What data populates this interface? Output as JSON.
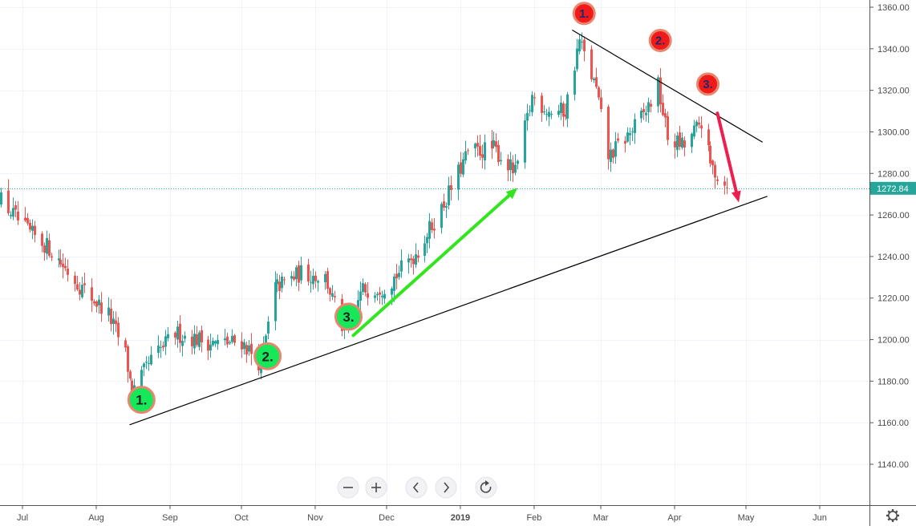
{
  "chart_data": {
    "type": "candlestick",
    "title": "",
    "xlabel": "",
    "ylabel": "",
    "ylim": [
      1125,
      1362
    ],
    "y_ticks": [
      "1140.00",
      "1160.00",
      "1180.00",
      "1200.00",
      "1220.00",
      "1240.00",
      "1260.00",
      "1280.00",
      "1300.00",
      "1320.00",
      "1340.00",
      "1360.00"
    ],
    "x_ticks": [
      "Jul",
      "Aug",
      "Sep",
      "Oct",
      "Nov",
      "Dec",
      "2019",
      "Feb",
      "Mar",
      "Apr",
      "May",
      "Jun"
    ],
    "x_range": [
      "2018-06-18",
      "2019-06-30"
    ],
    "grid": true,
    "last_price": 1272.84,
    "last_price_label": "1272.84",
    "colors": {
      "up": "#26a69a",
      "down": "#ef5350",
      "trendline": "#000000",
      "up_arrow": "#33e51f",
      "down_arrow": "#ee1e4f",
      "green_marker": "#17e85a",
      "red_marker": "#f11a1a",
      "marker_border": "#e8866e",
      "last_price_line": "#26a69a"
    },
    "anchors": [
      {
        "date": "2018-06-20",
        "price": 1270
      },
      {
        "date": "2018-07-02",
        "price": 1253
      },
      {
        "date": "2018-07-12",
        "price": 1244
      },
      {
        "date": "2018-07-25",
        "price": 1226
      },
      {
        "date": "2018-08-06",
        "price": 1212
      },
      {
        "date": "2018-08-13",
        "price": 1193
      },
      {
        "date": "2018-08-16",
        "price": 1174
      },
      {
        "date": "2018-08-24",
        "price": 1190
      },
      {
        "date": "2018-09-03",
        "price": 1203
      },
      {
        "date": "2018-09-20",
        "price": 1198
      },
      {
        "date": "2018-10-01",
        "price": 1199
      },
      {
        "date": "2018-10-09",
        "price": 1188
      },
      {
        "date": "2018-10-15",
        "price": 1225
      },
      {
        "date": "2018-10-26",
        "price": 1232
      },
      {
        "date": "2018-11-05",
        "price": 1230
      },
      {
        "date": "2018-11-13",
        "price": 1203
      },
      {
        "date": "2018-11-21",
        "price": 1224
      },
      {
        "date": "2018-12-01",
        "price": 1226
      },
      {
        "date": "2018-12-14",
        "price": 1243
      },
      {
        "date": "2018-12-24",
        "price": 1263
      },
      {
        "date": "2019-01-04",
        "price": 1290
      },
      {
        "date": "2019-01-15",
        "price": 1292
      },
      {
        "date": "2019-01-24",
        "price": 1280
      },
      {
        "date": "2019-01-31",
        "price": 1317
      },
      {
        "date": "2019-02-07",
        "price": 1310
      },
      {
        "date": "2019-02-14",
        "price": 1310
      },
      {
        "date": "2019-02-20",
        "price": 1344
      },
      {
        "date": "2019-02-27",
        "price": 1320
      },
      {
        "date": "2019-03-04",
        "price": 1288
      },
      {
        "date": "2019-03-12",
        "price": 1298
      },
      {
        "date": "2019-03-20",
        "price": 1310
      },
      {
        "date": "2019-03-25",
        "price": 1322
      },
      {
        "date": "2019-03-29",
        "price": 1297
      },
      {
        "date": "2019-04-05",
        "price": 1293
      },
      {
        "date": "2019-04-12",
        "price": 1305
      },
      {
        "date": "2019-04-16",
        "price": 1284
      },
      {
        "date": "2019-04-23",
        "price": 1273
      }
    ],
    "trendlines": [
      {
        "name": "support",
        "from": {
          "date": "2018-08-15",
          "price": 1159
        },
        "to": {
          "date": "2019-05-10",
          "price": 1269
        }
      },
      {
        "name": "resistance",
        "from": {
          "date": "2019-02-17",
          "price": 1349
        },
        "to": {
          "date": "2019-05-08",
          "price": 1295
        }
      }
    ],
    "arrows": [
      {
        "name": "up-arrow",
        "from": {
          "date": "2018-11-17",
          "price": 1202
        },
        "to": {
          "date": "2019-01-25",
          "price": 1273
        }
      },
      {
        "name": "down-arrow",
        "from": {
          "date": "2019-04-19",
          "price": 1309
        },
        "to": {
          "date": "2019-04-28",
          "price": 1266
        }
      }
    ],
    "annotations": [
      {
        "label": "1.",
        "kind": "green",
        "date": "2018-08-20",
        "price": 1171
      },
      {
        "label": "2.",
        "kind": "green",
        "date": "2018-10-12",
        "price": 1192
      },
      {
        "label": "3.",
        "kind": "green",
        "date": "2018-11-15",
        "price": 1211
      },
      {
        "label": "1.",
        "kind": "red",
        "date": "2019-02-22",
        "price": 1357
      },
      {
        "label": "2.",
        "kind": "red",
        "date": "2019-03-26",
        "price": 1344
      },
      {
        "label": "3.",
        "kind": "red",
        "date": "2019-04-15",
        "price": 1323
      }
    ]
  },
  "toolbar": {
    "zoom_out_icon": "minus-icon",
    "zoom_in_icon": "plus-icon",
    "scroll_left_icon": "chevron-left-icon",
    "scroll_right_icon": "chevron-right-icon",
    "reset_icon": "reset-icon",
    "settings_icon": "gear-icon"
  }
}
